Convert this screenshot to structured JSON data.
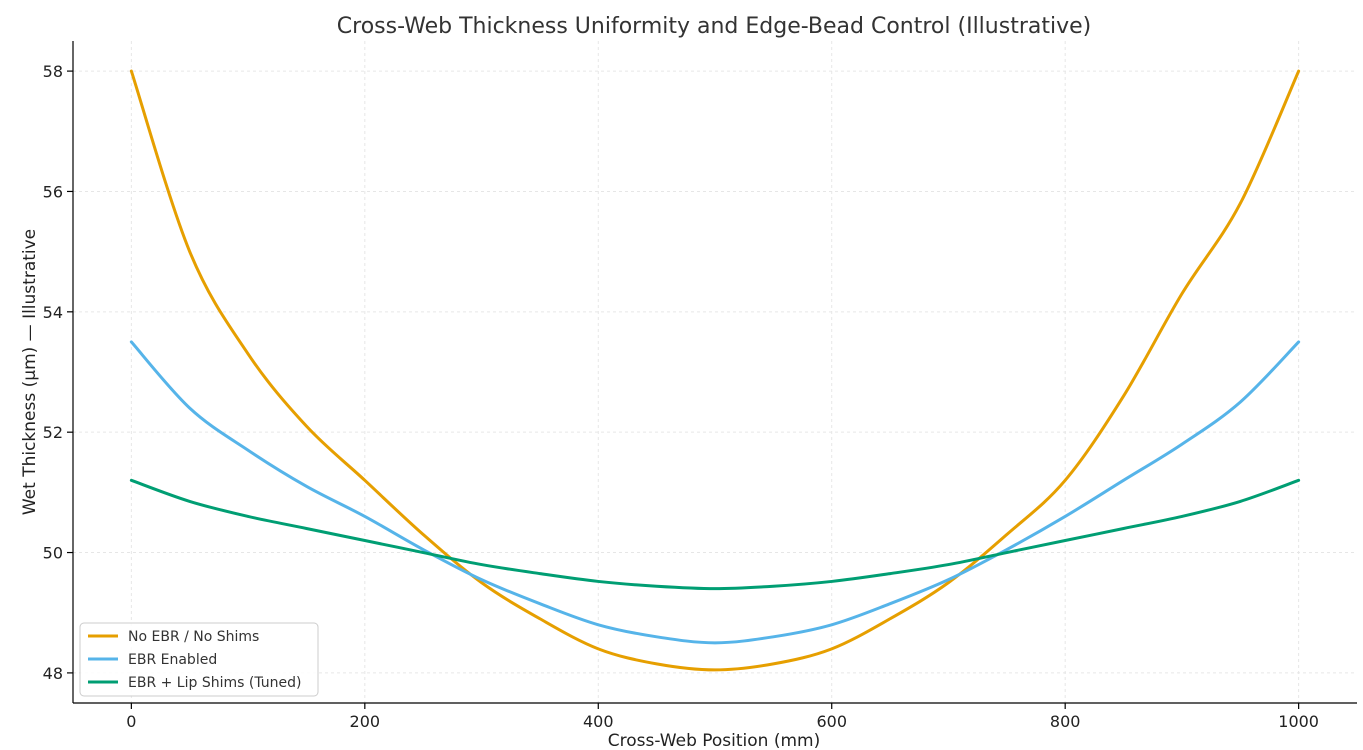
{
  "chart_data": {
    "type": "line",
    "title": "Cross-Web Thickness Uniformity and Edge-Bead Control (Illustrative)",
    "xlabel": "Cross-Web Position (mm)",
    "ylabel": "Wet Thickness (µm) — Illustrative",
    "xlim": [
      -50,
      1050
    ],
    "ylim": [
      47.5,
      58.5
    ],
    "xticks": [
      0,
      200,
      400,
      600,
      800,
      1000
    ],
    "xtick_labels": [
      "0",
      "200",
      "400",
      "600",
      "800",
      "1000"
    ],
    "yticks": [
      48,
      50,
      52,
      54,
      56,
      58
    ],
    "ytick_labels": [
      "48",
      "50",
      "52",
      "54",
      "56",
      "58"
    ],
    "grid": true,
    "legend_position": "lower-left",
    "x": [
      0,
      50,
      100,
      150,
      200,
      250,
      300,
      350,
      400,
      450,
      500,
      550,
      600,
      650,
      700,
      750,
      800,
      850,
      900,
      950,
      1000
    ],
    "series": [
      {
        "name": "No EBR / No Shims",
        "color": "#E69F00",
        "values": [
          58.0,
          55.0,
          53.3,
          52.1,
          51.2,
          50.3,
          49.5,
          48.9,
          48.4,
          48.15,
          48.05,
          48.15,
          48.4,
          48.9,
          49.5,
          50.3,
          51.2,
          52.6,
          54.3,
          55.8,
          58.0
        ]
      },
      {
        "name": "EBR Enabled",
        "color": "#56B4E9",
        "values": [
          53.5,
          52.4,
          51.7,
          51.1,
          50.6,
          50.05,
          49.55,
          49.15,
          48.8,
          48.6,
          48.5,
          48.6,
          48.8,
          49.15,
          49.55,
          50.05,
          50.6,
          51.2,
          51.8,
          52.5,
          53.5
        ]
      },
      {
        "name": "EBR + Lip Shims (Tuned)",
        "color": "#009E73",
        "values": [
          51.2,
          50.85,
          50.6,
          50.4,
          50.2,
          50.0,
          49.8,
          49.65,
          49.52,
          49.44,
          49.4,
          49.44,
          49.52,
          49.65,
          49.8,
          50.0,
          50.2,
          50.4,
          50.6,
          50.85,
          51.2
        ]
      }
    ]
  }
}
